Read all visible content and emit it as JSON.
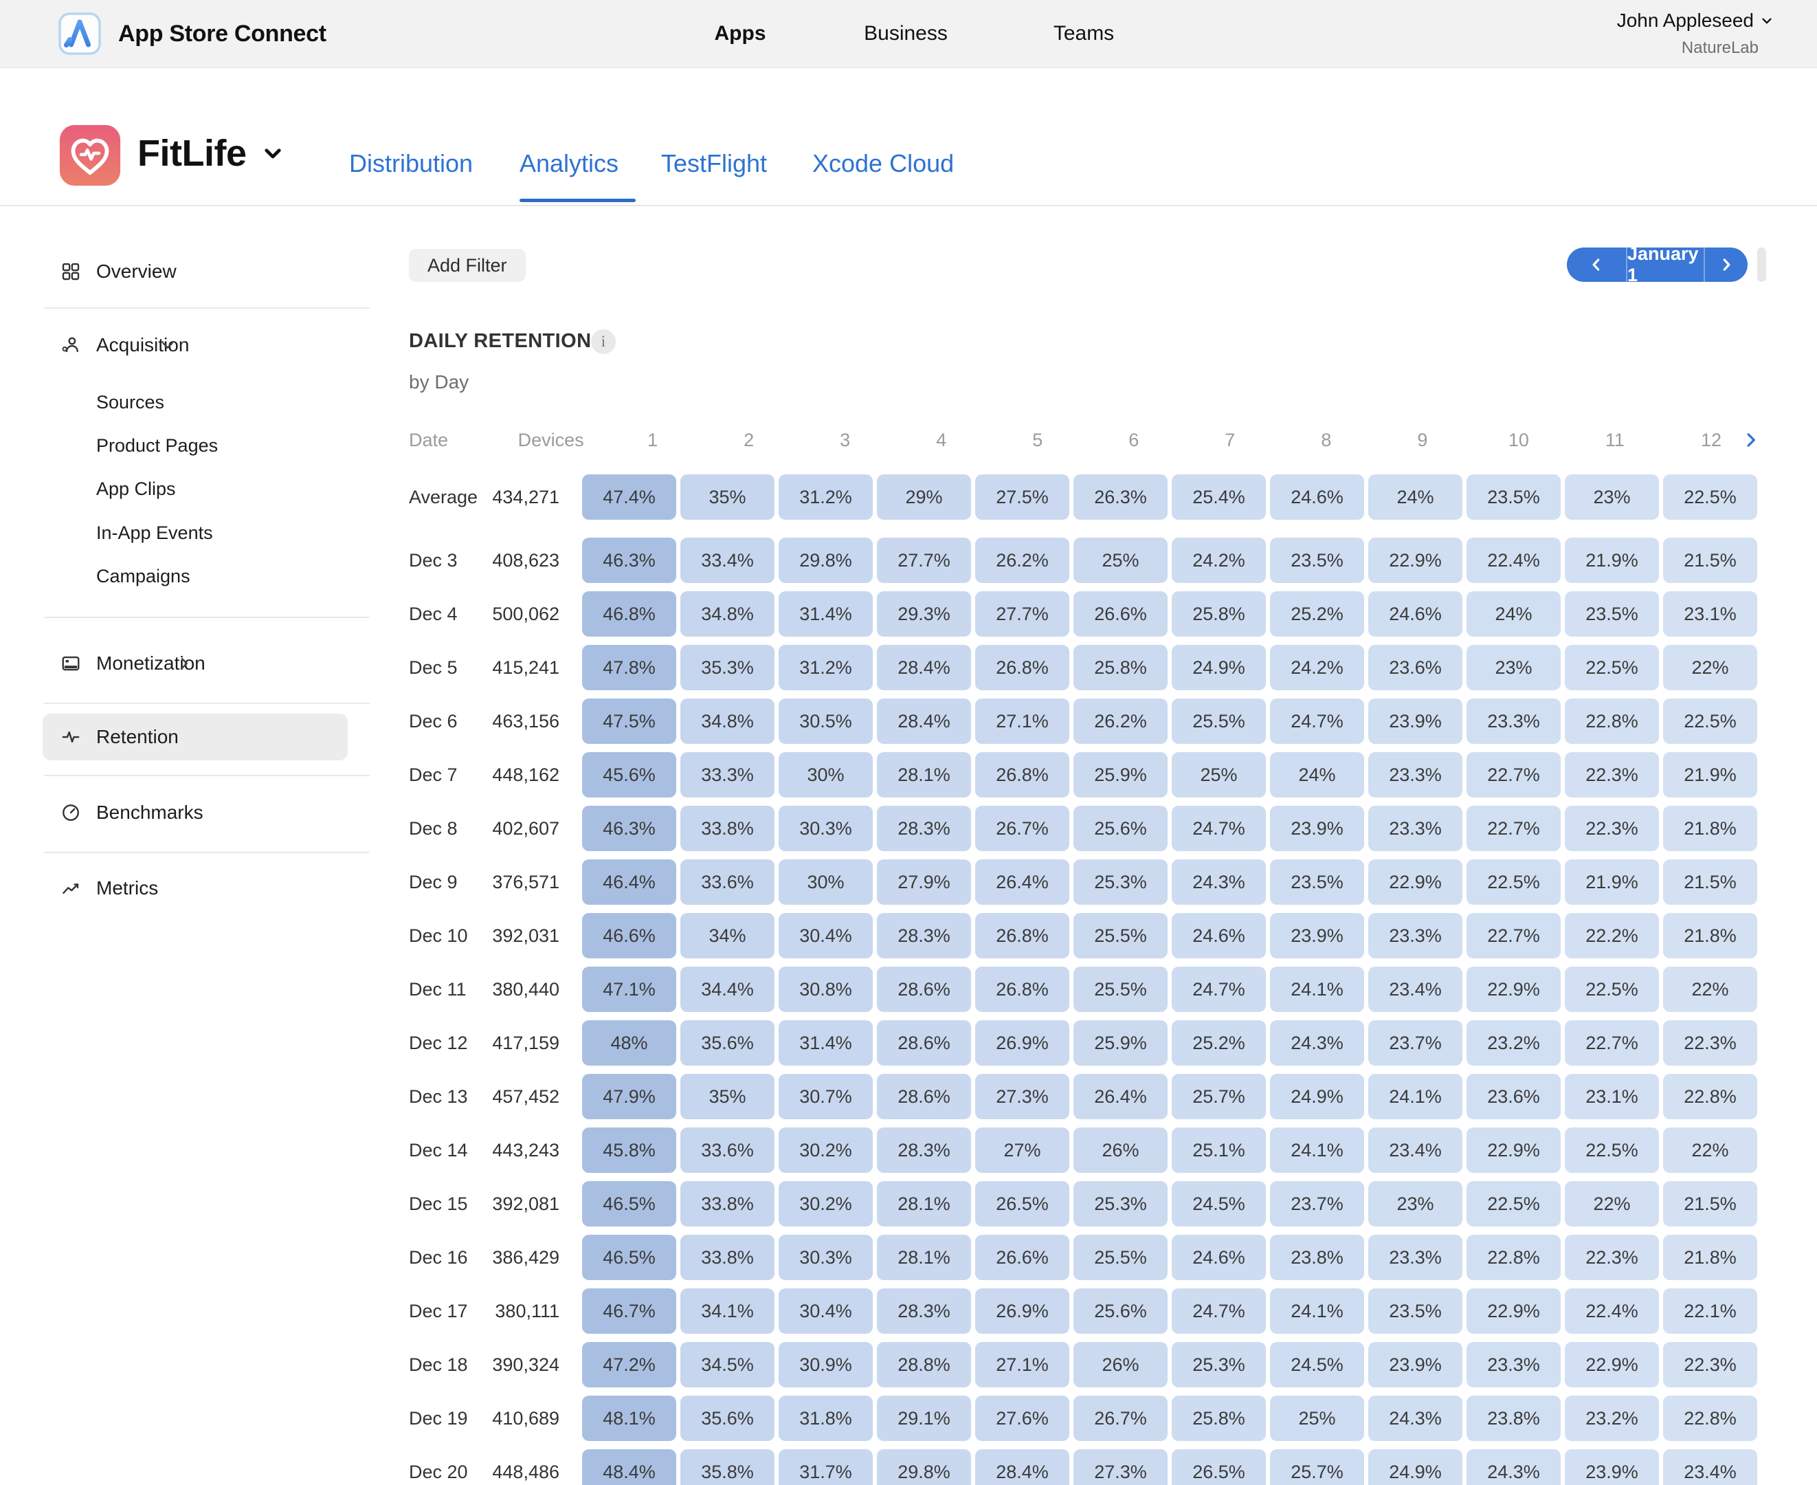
{
  "header": {
    "app_title": "App Store Connect",
    "nav": [
      {
        "label": "Apps",
        "active": true
      },
      {
        "label": "Business",
        "active": false
      },
      {
        "label": "Teams",
        "active": false
      }
    ],
    "user": {
      "name": "John Appleseed",
      "team": "NatureLab"
    }
  },
  "app_header": {
    "app_name": "FitLife",
    "tabs": [
      {
        "label": "Distribution",
        "active": false
      },
      {
        "label": "Analytics",
        "active": true
      },
      {
        "label": "TestFlight",
        "active": false
      },
      {
        "label": "Xcode Cloud",
        "active": false
      }
    ]
  },
  "sidebar": {
    "items": [
      {
        "label": "Overview",
        "icon": "grid-icon"
      },
      {
        "label": "Acquisition",
        "icon": "person-add-icon",
        "chevron": "down",
        "children": [
          "Sources",
          "Product Pages",
          "App Clips",
          "In-App Events",
          "Campaigns"
        ]
      },
      {
        "label": "Monetization",
        "icon": "credit-card-icon",
        "chevron": "right"
      },
      {
        "label": "Retention",
        "icon": "activity-icon",
        "active": true
      },
      {
        "label": "Benchmarks",
        "icon": "gauge-icon"
      },
      {
        "label": "Metrics",
        "icon": "line-chart-icon"
      }
    ]
  },
  "toolbar": {
    "add_filter_label": "Add Filter",
    "date_label": "January 1"
  },
  "section": {
    "title": "DAILY RETENTION",
    "info_glyph": "i",
    "subtitle": "by Day"
  },
  "retention_table": {
    "columns": [
      "Date",
      "Devices",
      "1",
      "2",
      "3",
      "4",
      "5",
      "6",
      "7",
      "8",
      "9",
      "10",
      "11",
      "12"
    ],
    "rows": [
      {
        "date": "Average",
        "devices": "434,271",
        "values": [
          "47.4%",
          "35%",
          "31.2%",
          "29%",
          "27.5%",
          "26.3%",
          "25.4%",
          "24.6%",
          "24%",
          "23.5%",
          "23%",
          "22.5%"
        ]
      },
      {
        "date": "Dec 3",
        "devices": "408,623",
        "values": [
          "46.3%",
          "33.4%",
          "29.8%",
          "27.7%",
          "26.2%",
          "25%",
          "24.2%",
          "23.5%",
          "22.9%",
          "22.4%",
          "21.9%",
          "21.5%"
        ]
      },
      {
        "date": "Dec 4",
        "devices": "500,062",
        "values": [
          "46.8%",
          "34.8%",
          "31.4%",
          "29.3%",
          "27.7%",
          "26.6%",
          "25.8%",
          "25.2%",
          "24.6%",
          "24%",
          "23.5%",
          "23.1%"
        ]
      },
      {
        "date": "Dec 5",
        "devices": "415,241",
        "values": [
          "47.8%",
          "35.3%",
          "31.2%",
          "28.4%",
          "26.8%",
          "25.8%",
          "24.9%",
          "24.2%",
          "23.6%",
          "23%",
          "22.5%",
          "22%"
        ]
      },
      {
        "date": "Dec 6",
        "devices": "463,156",
        "values": [
          "47.5%",
          "34.8%",
          "30.5%",
          "28.4%",
          "27.1%",
          "26.2%",
          "25.5%",
          "24.7%",
          "23.9%",
          "23.3%",
          "22.8%",
          "22.5%"
        ]
      },
      {
        "date": "Dec 7",
        "devices": "448,162",
        "values": [
          "45.6%",
          "33.3%",
          "30%",
          "28.1%",
          "26.8%",
          "25.9%",
          "25%",
          "24%",
          "23.3%",
          "22.7%",
          "22.3%",
          "21.9%"
        ]
      },
      {
        "date": "Dec 8",
        "devices": "402,607",
        "values": [
          "46.3%",
          "33.8%",
          "30.3%",
          "28.3%",
          "26.7%",
          "25.6%",
          "24.7%",
          "23.9%",
          "23.3%",
          "22.7%",
          "22.3%",
          "21.8%"
        ]
      },
      {
        "date": "Dec 9",
        "devices": "376,571",
        "values": [
          "46.4%",
          "33.6%",
          "30%",
          "27.9%",
          "26.4%",
          "25.3%",
          "24.3%",
          "23.5%",
          "22.9%",
          "22.5%",
          "21.9%",
          "21.5%"
        ]
      },
      {
        "date": "Dec 10",
        "devices": "392,031",
        "values": [
          "46.6%",
          "34%",
          "30.4%",
          "28.3%",
          "26.8%",
          "25.5%",
          "24.6%",
          "23.9%",
          "23.3%",
          "22.7%",
          "22.2%",
          "21.8%"
        ]
      },
      {
        "date": "Dec 11",
        "devices": "380,440",
        "values": [
          "47.1%",
          "34.4%",
          "30.8%",
          "28.6%",
          "26.8%",
          "25.5%",
          "24.7%",
          "24.1%",
          "23.4%",
          "22.9%",
          "22.5%",
          "22%"
        ]
      },
      {
        "date": "Dec 12",
        "devices": "417,159",
        "values": [
          "48%",
          "35.6%",
          "31.4%",
          "28.6%",
          "26.9%",
          "25.9%",
          "25.2%",
          "24.3%",
          "23.7%",
          "23.2%",
          "22.7%",
          "22.3%"
        ]
      },
      {
        "date": "Dec 13",
        "devices": "457,452",
        "values": [
          "47.9%",
          "35%",
          "30.7%",
          "28.6%",
          "27.3%",
          "26.4%",
          "25.7%",
          "24.9%",
          "24.1%",
          "23.6%",
          "23.1%",
          "22.8%"
        ]
      },
      {
        "date": "Dec 14",
        "devices": "443,243",
        "values": [
          "45.8%",
          "33.6%",
          "30.2%",
          "28.3%",
          "27%",
          "26%",
          "25.1%",
          "24.1%",
          "23.4%",
          "22.9%",
          "22.5%",
          "22%"
        ]
      },
      {
        "date": "Dec 15",
        "devices": "392,081",
        "values": [
          "46.5%",
          "33.8%",
          "30.2%",
          "28.1%",
          "26.5%",
          "25.3%",
          "24.5%",
          "23.7%",
          "23%",
          "22.5%",
          "22%",
          "21.5%"
        ]
      },
      {
        "date": "Dec 16",
        "devices": "386,429",
        "values": [
          "46.5%",
          "33.8%",
          "30.3%",
          "28.1%",
          "26.6%",
          "25.5%",
          "24.6%",
          "23.8%",
          "23.3%",
          "22.8%",
          "22.3%",
          "21.8%"
        ]
      },
      {
        "date": "Dec 17",
        "devices": "380,111",
        "values": [
          "46.7%",
          "34.1%",
          "30.4%",
          "28.3%",
          "26.9%",
          "25.6%",
          "24.7%",
          "24.1%",
          "23.5%",
          "22.9%",
          "22.4%",
          "22.1%"
        ]
      },
      {
        "date": "Dec 18",
        "devices": "390,324",
        "values": [
          "47.2%",
          "34.5%",
          "30.9%",
          "28.8%",
          "27.1%",
          "26%",
          "25.3%",
          "24.5%",
          "23.9%",
          "23.3%",
          "22.9%",
          "22.3%"
        ]
      },
      {
        "date": "Dec 19",
        "devices": "410,689",
        "values": [
          "48.1%",
          "35.6%",
          "31.8%",
          "29.1%",
          "27.6%",
          "26.7%",
          "25.8%",
          "25%",
          "24.3%",
          "23.8%",
          "23.2%",
          "22.8%"
        ]
      },
      {
        "date": "Dec 20",
        "devices": "448,486",
        "values": [
          "48.4%",
          "35.8%",
          "31.7%",
          "29.8%",
          "28.4%",
          "27.3%",
          "26.5%",
          "25.7%",
          "24.9%",
          "24.3%",
          "23.9%",
          "23.4%"
        ]
      }
    ]
  },
  "colors": {
    "accent": "#2e72d2",
    "pill_blue": "#3a77d6",
    "active_tab_underline": "#2b6cc9",
    "cell_first_column": "#a9bfe2",
    "cell_light_from": "#c6d6ee",
    "cell_light_to": "#d4e1f3",
    "cell_text": "#3b3b3b",
    "muted_header": "#9b9b9e",
    "topbar_bg": "#f2f2f3",
    "sidebar_active_bg": "#ececec",
    "app_icon_gradient_top": "#e95f7d",
    "app_icon_gradient_bottom": "#ea7f6b"
  }
}
